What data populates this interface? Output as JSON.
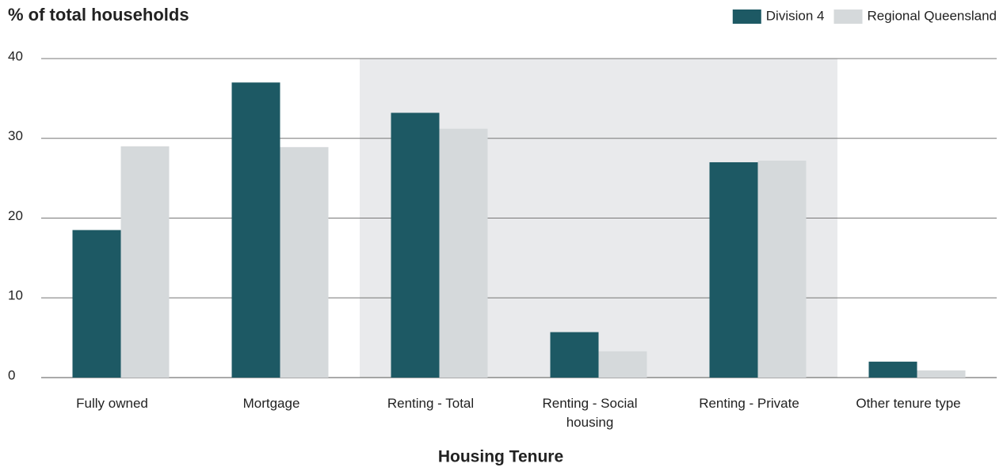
{
  "chart_data": {
    "type": "bar",
    "title": "% of total households",
    "x_label": "Housing Tenure",
    "categories": [
      "Fully owned",
      "Mortgage",
      "Renting - Total",
      "Renting - Social housing",
      "Renting - Private",
      "Other tenure type"
    ],
    "series": [
      {
        "name": "Division 4",
        "color": "#1d5964",
        "values": [
          18.5,
          37.0,
          33.2,
          5.7,
          27.0,
          2.0
        ]
      },
      {
        "name": "Regional Queensland",
        "color": "#d5d9db",
        "values": [
          29.0,
          28.9,
          31.2,
          3.3,
          27.2,
          0.9
        ]
      }
    ],
    "ylim": [
      0,
      40
    ],
    "yticks": [
      0,
      10,
      20,
      30,
      40
    ],
    "grid": true,
    "legend": "top-right"
  }
}
